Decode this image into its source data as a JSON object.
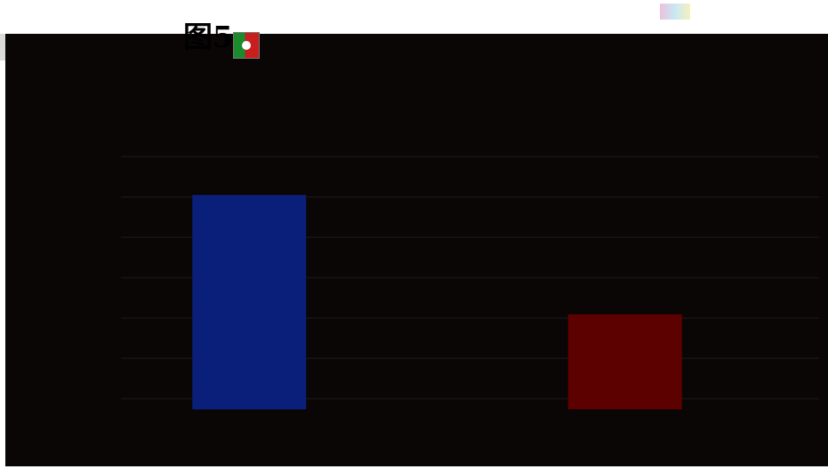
{
  "header": {
    "figure_label": "图5"
  },
  "icons": {
    "thumbnail": "image-thumbnail-icon",
    "decoration": "pixel-sprite-icon"
  },
  "colors": {
    "background": "#0a0606",
    "gridline": "#241818",
    "series_1": "#0a1f7a",
    "series_2": "#5c0000"
  },
  "chart_data": {
    "type": "bar",
    "title": "",
    "categories": [
      "",
      ""
    ],
    "values": [
      248,
      110
    ],
    "ylim": [
      0,
      280
    ],
    "grid": true,
    "legend": "none",
    "bar_colors": [
      "#0a1f7a",
      "#5c0000"
    ]
  }
}
